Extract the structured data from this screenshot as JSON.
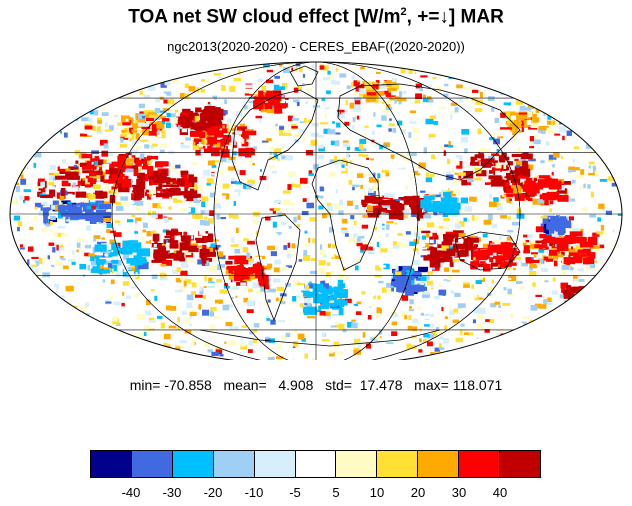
{
  "title": {
    "prefix": "TOA net SW cloud effect [W/m",
    "sup": "2",
    "suffix": ", +=↓]  MAR"
  },
  "subtitle": "ngc2013(2020-2020) - CERES_EBAF((2020-2020))",
  "stats": "min= -70.858   mean=   4.908   std=  17.478   max= 118.071",
  "map": {
    "projection": "mollweide",
    "field": "TOA net SW cloud effect difference",
    "units": "W/m2"
  },
  "colorbar": {
    "colors": [
      "#00008b",
      "#4169e1",
      "#00bfff",
      "#a0cff5",
      "#d6effa",
      "#ffffff",
      "#fffbc4",
      "#ffe033",
      "#ffaa00",
      "#ff0000",
      "#c00000"
    ],
    "tick_labels": [
      "-40",
      "-30",
      "-20",
      "-10",
      "-5",
      "5",
      "10",
      "20",
      "30",
      "40"
    ],
    "levels": [
      -40,
      -30,
      -20,
      -10,
      -5,
      5,
      10,
      20,
      30,
      40
    ]
  }
}
